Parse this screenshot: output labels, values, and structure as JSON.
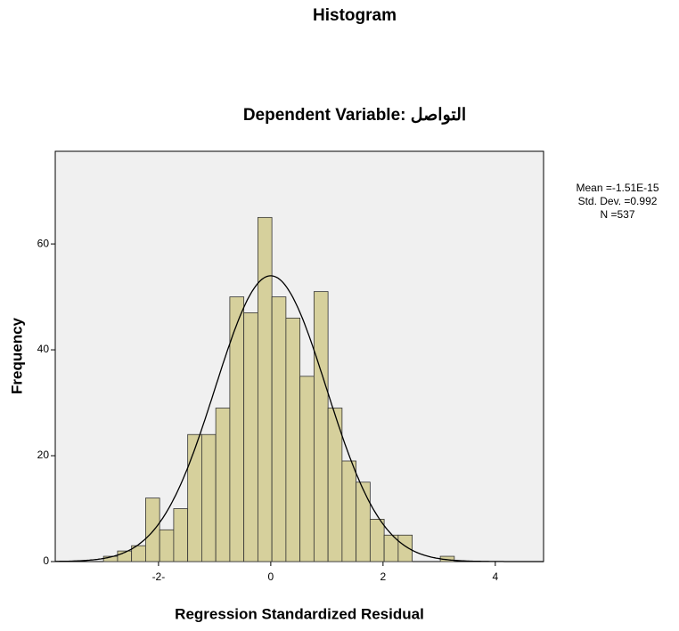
{
  "chart_data": {
    "type": "histogram",
    "title": "Histogram",
    "subtitle": "Dependent Variable: التواصل",
    "x_label": "Regression Standardized Residual",
    "y_label": "Frequency",
    "bins": [
      -2.98,
      -2.73,
      -2.48,
      -2.23,
      -1.98,
      -1.73,
      -1.48,
      -1.23,
      -0.98,
      -0.73,
      -0.48,
      -0.23,
      0.02,
      0.27,
      0.52,
      0.77,
      1.02,
      1.27,
      1.52,
      1.77,
      2.02,
      2.27,
      2.52,
      2.77,
      3.02,
      3.27
    ],
    "values": [
      1,
      2,
      3,
      12,
      6,
      10,
      24,
      24,
      29,
      50,
      47,
      65,
      50,
      46,
      35,
      51,
      29,
      19,
      15,
      8,
      5,
      5,
      0,
      0,
      1
    ],
    "color": "#d6d09c",
    "xlim": [
      -3.84,
      4.86
    ],
    "xticks": [
      {
        "value": -2,
        "label": "-2-"
      },
      0,
      2,
      4
    ],
    "ylim": [
      0,
      77.5
    ],
    "yticks": [
      0,
      20,
      40,
      60
    ],
    "normal_curve": {
      "mean": {
        "value": -1.51e-15,
        "label": "Mean =-1.51E-15"
      },
      "sd": {
        "value": 0.992,
        "label": "Std. Dev. =0.992"
      },
      "n": {
        "value": 537,
        "label": "N =537"
      }
    }
  }
}
